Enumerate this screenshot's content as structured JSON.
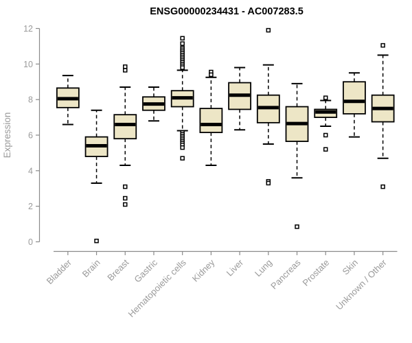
{
  "window": {
    "background_color": "#ffffff"
  },
  "colors": {
    "box_fill": "#ede6c6",
    "box_stroke": "#000000",
    "median_color": "#000000",
    "whisker_color": "#000000",
    "outlier_stroke": "#000000",
    "outlier_fill": "#ffffff",
    "axis_line": "#8a8a8a",
    "tick_text": "#9a9a9a",
    "title_color": "#000000"
  },
  "chart_data": {
    "type": "boxplot",
    "title": "ENSG00000234431 - AC007283.5",
    "xlabel": "",
    "ylabel": "Expression",
    "ylim": [
      0,
      12
    ],
    "yticks": [
      0,
      2,
      4,
      6,
      8,
      10,
      12
    ],
    "grid": false,
    "legend": null,
    "categories": [
      "Bladder",
      "Brain",
      "Breast",
      "Gastric",
      "Hematopoietic cells",
      "Kidney",
      "Liver",
      "Lung",
      "Pancreas",
      "Prostate",
      "Skin",
      "Unknown / Other"
    ],
    "series": [
      {
        "category": "Bladder",
        "low": 6.6,
        "q1": 7.55,
        "median": 8.05,
        "q3": 8.65,
        "high": 9.35,
        "outliers": []
      },
      {
        "category": "Brain",
        "low": 3.3,
        "q1": 4.8,
        "median": 5.4,
        "q3": 5.9,
        "high": 7.4,
        "outliers": [
          0.05
        ]
      },
      {
        "category": "Breast",
        "low": 4.3,
        "q1": 5.8,
        "median": 6.6,
        "q3": 7.15,
        "high": 8.7,
        "outliers": [
          9.85,
          9.65,
          3.1,
          2.45,
          2.1
        ]
      },
      {
        "category": "Gastric",
        "low": 6.8,
        "q1": 7.4,
        "median": 7.75,
        "q3": 8.15,
        "high": 8.7,
        "outliers": []
      },
      {
        "category": "Hematopoietic cells",
        "low": 6.25,
        "q1": 7.6,
        "median": 8.1,
        "q3": 8.5,
        "high": 9.65,
        "outliers": [
          11.45,
          11.15,
          10.9,
          10.8,
          10.7,
          10.6,
          10.5,
          10.4,
          10.3,
          10.2,
          10.1,
          10.0,
          9.9,
          9.8,
          6.15,
          6.05,
          5.95,
          5.85,
          5.75,
          5.65,
          5.55,
          5.45,
          5.3,
          4.7
        ]
      },
      {
        "category": "Kidney",
        "low": 4.3,
        "q1": 6.15,
        "median": 6.6,
        "q3": 7.5,
        "high": 9.25,
        "outliers": [
          9.55,
          9.4
        ]
      },
      {
        "category": "Liver",
        "low": 6.3,
        "q1": 7.45,
        "median": 8.25,
        "q3": 8.95,
        "high": 9.8,
        "outliers": []
      },
      {
        "category": "Lung",
        "low": 5.5,
        "q1": 6.7,
        "median": 7.55,
        "q3": 8.25,
        "high": 9.95,
        "outliers": [
          11.9,
          3.4,
          3.3
        ]
      },
      {
        "category": "Pancreas",
        "low": 3.6,
        "q1": 5.65,
        "median": 6.65,
        "q3": 7.6,
        "high": 8.9,
        "outliers": [
          0.85
        ]
      },
      {
        "category": "Prostate",
        "low": 6.5,
        "q1": 7.0,
        "median": 7.3,
        "q3": 7.45,
        "high": 7.95,
        "outliers": [
          8.1,
          6.0,
          5.2
        ]
      },
      {
        "category": "Skin",
        "low": 5.9,
        "q1": 7.2,
        "median": 7.9,
        "q3": 9.0,
        "high": 9.5,
        "outliers": []
      },
      {
        "category": "Unknown / Other",
        "low": 4.7,
        "q1": 6.75,
        "median": 7.5,
        "q3": 8.25,
        "high": 10.5,
        "outliers": [
          11.05,
          3.1
        ]
      }
    ]
  }
}
